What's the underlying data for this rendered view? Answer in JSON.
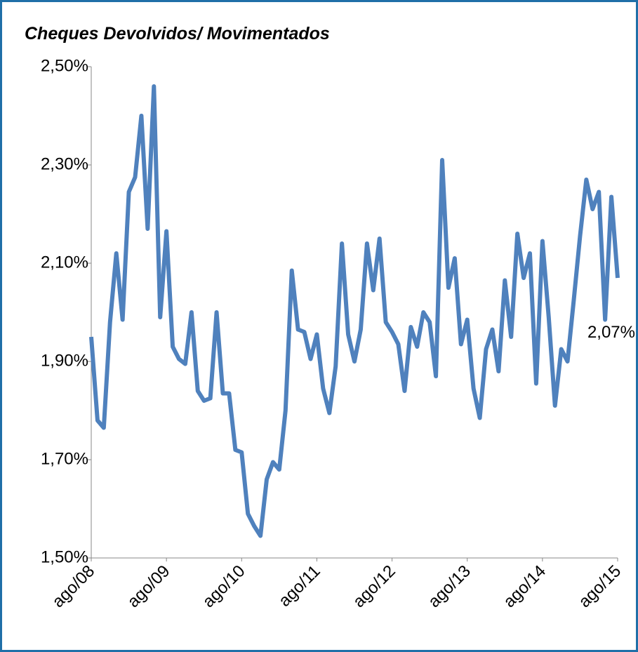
{
  "chart_data": {
    "type": "line",
    "title": "Cheques Devolvidos/ Movimentados",
    "categories": [
      "ago/08",
      null,
      null,
      null,
      null,
      null,
      null,
      null,
      null,
      null,
      null,
      null,
      "ago/09",
      null,
      null,
      null,
      null,
      null,
      null,
      null,
      null,
      null,
      null,
      null,
      "ago/10",
      null,
      null,
      null,
      null,
      null,
      null,
      null,
      null,
      null,
      null,
      null,
      "ago/11",
      null,
      null,
      null,
      null,
      null,
      null,
      null,
      null,
      null,
      null,
      null,
      "ago/12",
      null,
      null,
      null,
      null,
      null,
      null,
      null,
      null,
      null,
      null,
      null,
      "ago/13",
      null,
      null,
      null,
      null,
      null,
      null,
      null,
      null,
      null,
      null,
      null,
      "ago/14",
      null,
      null,
      null,
      null,
      null,
      null,
      null,
      null,
      null,
      null,
      null,
      "ago/15"
    ],
    "series": [
      {
        "color": "#4f81bd",
        "values": [
          1.95,
          1.78,
          1.765,
          1.98,
          2.12,
          1.985,
          2.245,
          2.275,
          2.4,
          2.17,
          2.46,
          1.99,
          2.165,
          1.93,
          1.905,
          1.895,
          2.0,
          1.84,
          1.82,
          1.825,
          2.0,
          1.835,
          1.835,
          1.72,
          1.715,
          1.59,
          1.565,
          1.545,
          1.66,
          1.695,
          1.68,
          1.8,
          2.085,
          1.965,
          1.96,
          1.905,
          1.955,
          1.845,
          1.795,
          1.89,
          2.14,
          1.955,
          1.9,
          1.965,
          2.14,
          2.045,
          2.15,
          1.98,
          1.96,
          1.935,
          1.84,
          1.97,
          1.93,
          2.0,
          1.98,
          1.87,
          2.31,
          2.05,
          2.11,
          1.935,
          1.985,
          1.845,
          1.785,
          1.925,
          1.965,
          1.88,
          2.065,
          1.95,
          2.16,
          2.07,
          2.12,
          1.855,
          2.145,
          1.99,
          1.81,
          1.925,
          1.9,
          2.025,
          2.155,
          2.27,
          2.21,
          2.245,
          1.985,
          2.235,
          2.07
        ],
        "value_labels": [
          null,
          null,
          null,
          null,
          null,
          null,
          null,
          null,
          null,
          null,
          null,
          null,
          null,
          null,
          null,
          null,
          null,
          null,
          null,
          null,
          null,
          null,
          null,
          null,
          null,
          null,
          null,
          null,
          null,
          null,
          null,
          null,
          null,
          null,
          null,
          null,
          null,
          null,
          null,
          null,
          null,
          null,
          null,
          null,
          null,
          null,
          null,
          null,
          null,
          null,
          null,
          null,
          null,
          null,
          null,
          null,
          null,
          null,
          null,
          null,
          null,
          null,
          null,
          null,
          null,
          null,
          null,
          null,
          null,
          null,
          null,
          null,
          null,
          null,
          null,
          null,
          null,
          null,
          null,
          null,
          null,
          null,
          null,
          null,
          "2,07%"
        ]
      }
    ],
    "ylim": [
      1.5,
      2.5
    ],
    "yticks": [
      {
        "value": 1.5,
        "label": "1,50%"
      },
      {
        "value": 1.7,
        "label": "1,70%"
      },
      {
        "value": 1.9,
        "label": "1,90%"
      },
      {
        "value": 2.1,
        "label": "2,10%"
      },
      {
        "value": 2.3,
        "label": "2,30%"
      },
      {
        "value": 2.5,
        "label": "2,50%"
      }
    ]
  }
}
